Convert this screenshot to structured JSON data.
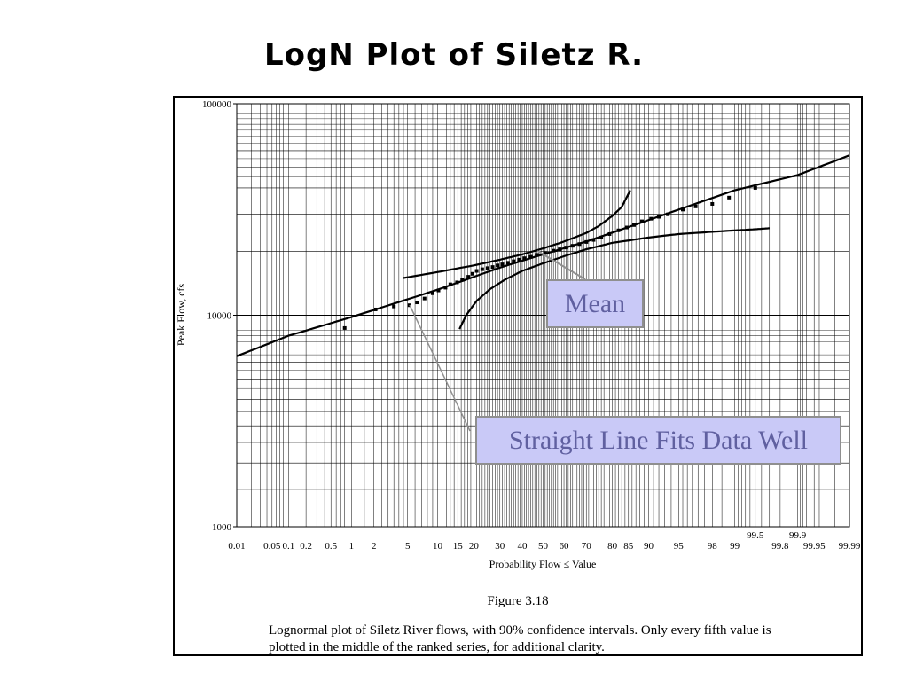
{
  "slide": {
    "title": "LogN Plot of Siletz R.",
    "figure_label": "Figure 3.18",
    "caption": "Lognormal plot of Siletz River flows, with 90% confidence intervals.  Only every fifth value is plotted in the middle of the ranked series, for additional clarity."
  },
  "callouts": {
    "mean": "Mean",
    "fit": "Straight Line Fits Data Well"
  },
  "colors": {
    "callout_fill": "#c9c9f7",
    "callout_text": "#6060a0",
    "grid": "#000000"
  },
  "chart_data": {
    "type": "scatter",
    "xlabel": "Probability Flow ≤ Value",
    "ylabel": "Peak Flow, cfs",
    "x_scale": "normal-probability",
    "y_scale": "log",
    "xlim": [
      0.01,
      99.99
    ],
    "ylim": [
      1000,
      100000
    ],
    "x_ticks": [
      {
        "v": 0.01,
        "t": "0.01"
      },
      {
        "v": 0.05,
        "t": "0.05"
      },
      {
        "v": 0.1,
        "t": "0.1"
      },
      {
        "v": 0.2,
        "t": "0.2"
      },
      {
        "v": 0.5,
        "t": "0.5"
      },
      {
        "v": 1,
        "t": "1"
      },
      {
        "v": 2,
        "t": "2"
      },
      {
        "v": 5,
        "t": "5"
      },
      {
        "v": 10,
        "t": "10"
      },
      {
        "v": 15,
        "t": "15"
      },
      {
        "v": 20,
        "t": "20"
      },
      {
        "v": 30,
        "t": "30"
      },
      {
        "v": 40,
        "t": "40"
      },
      {
        "v": 50,
        "t": "50"
      },
      {
        "v": 60,
        "t": "60"
      },
      {
        "v": 70,
        "t": "70"
      },
      {
        "v": 80,
        "t": "80"
      },
      {
        "v": 85,
        "t": "85"
      },
      {
        "v": 90,
        "t": "90"
      },
      {
        "v": 95,
        "t": "95"
      },
      {
        "v": 98,
        "t": "98"
      },
      {
        "v": 99,
        "t": "99"
      },
      {
        "v": 99.5,
        "t": "99.5",
        "raised": true
      },
      {
        "v": 99.8,
        "t": "99.8"
      },
      {
        "v": 99.9,
        "t": "99.9",
        "raised": true
      },
      {
        "v": 99.95,
        "t": "99.95"
      },
      {
        "v": 99.99,
        "t": "99.99"
      }
    ],
    "y_ticks": [
      {
        "v": 1000,
        "t": "1000"
      },
      {
        "v": 10000,
        "t": "10000"
      },
      {
        "v": 100000,
        "t": "100000"
      }
    ],
    "series": [
      {
        "kind": "points",
        "points": [
          [
            0.8,
            8700
          ],
          [
            2.1,
            10650
          ],
          [
            3.5,
            11000
          ],
          [
            5.2,
            11150
          ],
          [
            6.3,
            11500
          ],
          [
            7.5,
            12000
          ],
          [
            9.0,
            12700
          ],
          [
            10.2,
            13100
          ],
          [
            11.8,
            13500
          ],
          [
            13.0,
            14000
          ],
          [
            14.8,
            14300
          ],
          [
            16.3,
            14700
          ],
          [
            18.2,
            15200
          ],
          [
            19.5,
            15700
          ],
          [
            21.0,
            16200
          ],
          [
            23.0,
            16500
          ],
          [
            25.0,
            16700
          ],
          [
            27.0,
            16900
          ],
          [
            29.0,
            17200
          ],
          [
            31.0,
            17400
          ],
          [
            33.5,
            17700
          ],
          [
            36.0,
            18000
          ],
          [
            38.5,
            18300
          ],
          [
            41.0,
            18600
          ],
          [
            44.0,
            18900
          ],
          [
            47.0,
            19300
          ],
          [
            51.0,
            19700
          ],
          [
            55.0,
            20200
          ],
          [
            58.0,
            20500
          ],
          [
            61.0,
            20900
          ],
          [
            64.0,
            21300
          ],
          [
            67.0,
            21700
          ],
          [
            70.0,
            22200
          ],
          [
            73.0,
            22700
          ],
          [
            76.0,
            23300
          ],
          [
            79.0,
            24200
          ],
          [
            82.0,
            25200
          ],
          [
            84.5,
            26000
          ],
          [
            86.5,
            26700
          ],
          [
            88.5,
            27800
          ],
          [
            90.5,
            28600
          ],
          [
            92.0,
            29200
          ],
          [
            93.5,
            30000
          ],
          [
            95.5,
            31600
          ],
          [
            96.8,
            32700
          ],
          [
            98.0,
            33600
          ],
          [
            98.8,
            36000
          ],
          [
            99.5,
            40000
          ]
        ]
      },
      {
        "kind": "line",
        "points": [
          [
            0.01,
            6400
          ],
          [
            0.1,
            8000
          ],
          [
            1,
            9800
          ],
          [
            10,
            13200
          ],
          [
            30,
            16800
          ],
          [
            50,
            19400
          ],
          [
            70,
            22300
          ],
          [
            90,
            28200
          ],
          [
            99,
            39000
          ],
          [
            99.9,
            46000
          ],
          [
            99.99,
            57000
          ]
        ]
      },
      {
        "kind": "line",
        "points": [
          [
            4.5,
            15000
          ],
          [
            10,
            16000
          ],
          [
            20,
            17200
          ],
          [
            30,
            18300
          ],
          [
            40,
            19400
          ],
          [
            50,
            20700
          ],
          [
            60,
            22300
          ],
          [
            70,
            24500
          ],
          [
            75,
            26400
          ],
          [
            80,
            29500
          ],
          [
            83,
            32500
          ],
          [
            85.5,
            39000
          ]
        ]
      },
      {
        "kind": "line",
        "points": [
          [
            15.5,
            8600
          ],
          [
            17.5,
            10000
          ],
          [
            21,
            11700
          ],
          [
            26,
            13300
          ],
          [
            32,
            14700
          ],
          [
            40,
            16200
          ],
          [
            50,
            17600
          ],
          [
            60,
            19000
          ],
          [
            70,
            20500
          ],
          [
            80,
            22000
          ],
          [
            90,
            23300
          ],
          [
            95,
            24200
          ],
          [
            98,
            24800
          ],
          [
            99,
            25200
          ],
          [
            99.5,
            25500
          ],
          [
            99.7,
            25800
          ]
        ]
      }
    ],
    "annotations": [
      {
        "text": "Mean",
        "x": 53,
        "y": 20000
      },
      {
        "text": "Straight Line Fits Data Well",
        "x": 5.5,
        "y": 11300
      }
    ]
  }
}
